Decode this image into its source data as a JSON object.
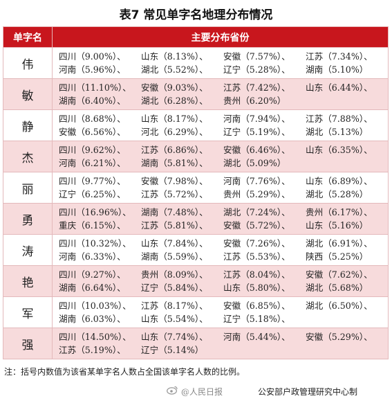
{
  "title": "表7  常见单字名地理分布情况",
  "headers": {
    "name": "单字名",
    "provinces": "主要分布省份"
  },
  "rows": [
    {
      "name": "伟",
      "lines": [
        [
          "四川（9.00%）、",
          "山东（8.13%）、",
          "安徽（7.57%）、",
          "江苏（7.34%）、"
        ],
        [
          "河南（5.96%）、",
          "湖北（5.52%）、",
          "辽宁（5.28%）、",
          "湖南（5.10%）"
        ]
      ]
    },
    {
      "name": "敏",
      "lines": [
        [
          "四川（11.10%）、",
          "安徽（9.03%）、",
          "江苏（7.42%）、",
          "山东（6.44%）、"
        ],
        [
          "湖南（6.40%）、",
          "湖北（6.28%）、",
          "贵州（6.20%）",
          ""
        ]
      ]
    },
    {
      "name": "静",
      "lines": [
        [
          "四川（8.68%）、",
          "山东（8.17%）、",
          "河南（7.94%）、",
          "江苏（7.88%）、"
        ],
        [
          "安徽（6.56%）、",
          "河北（6.29%）、",
          "辽宁（5.19%）、",
          "湖北（5.13%）"
        ]
      ]
    },
    {
      "name": "杰",
      "lines": [
        [
          "四川（9.62%）、",
          "江苏（6.86%）、",
          "安徽（6.46%）、",
          "山东（6.35%）、"
        ],
        [
          "河南（6.21%）、",
          "湖南（5.81%）、",
          "湖北（5.09%）",
          ""
        ]
      ]
    },
    {
      "name": "丽",
      "lines": [
        [
          "四川（9.77%）、",
          "安徽（7.98%）、",
          "河南（7.76%）、",
          "山东（6.89%）、"
        ],
        [
          "辽宁（6.25%）、",
          "江苏（5.72%）、",
          "贵州（5.29%）、",
          "湖北（5.28%）"
        ]
      ]
    },
    {
      "name": "勇",
      "lines": [
        [
          "四川（16.96%）、",
          "湖南（7.48%）、",
          "湖北（7.24%）、",
          "贵州（6.17%）、"
        ],
        [
          "重庆（6.15%）、",
          "江苏（5.81%）、",
          "安徽（5.72%）、",
          "山东（5.16%）"
        ]
      ]
    },
    {
      "name": "涛",
      "lines": [
        [
          "四川（10.32%）、",
          "山东（7.84%）、",
          "安徽（7.26%）、",
          "湖北（6.91%）、"
        ],
        [
          "河南（6.33%）、",
          "湖南（5.59%）、",
          "江苏（5.53%）、",
          "陕西（5.25%）"
        ]
      ]
    },
    {
      "name": "艳",
      "lines": [
        [
          "四川（9.27%）、",
          "贵州（8.09%）、",
          "江苏（8.04%）、",
          "安徽（7.62%）、"
        ],
        [
          "湖南（6.64%）、",
          "辽宁（5.84%）、",
          "山东（5.80%）、",
          "湖北（5.68%）"
        ]
      ]
    },
    {
      "name": "军",
      "lines": [
        [
          "四川（10.03%）、",
          "江苏（8.17%）、",
          "安徽（6.85%）、",
          "湖北（6.50%）、"
        ],
        [
          "湖南（6.03%）、",
          "山东（5.54%）、",
          "辽宁（5.18%）、",
          ""
        ]
      ]
    },
    {
      "name": "强",
      "lines": [
        [
          "四川（14.50%）、",
          "山东（7.74%）、",
          "河南（5.44%）、",
          "安徽（5.29%）、"
        ],
        [
          "江苏（5.19%）、",
          "辽宁（5.14%）",
          "",
          ""
        ]
      ]
    }
  ],
  "note": "注：括号内数值为该省某单字名人数占全国该单字名人数的比例。",
  "watermark": {
    "weibo": "@人民日报",
    "source": "公安部户政管理研究中心制"
  }
}
